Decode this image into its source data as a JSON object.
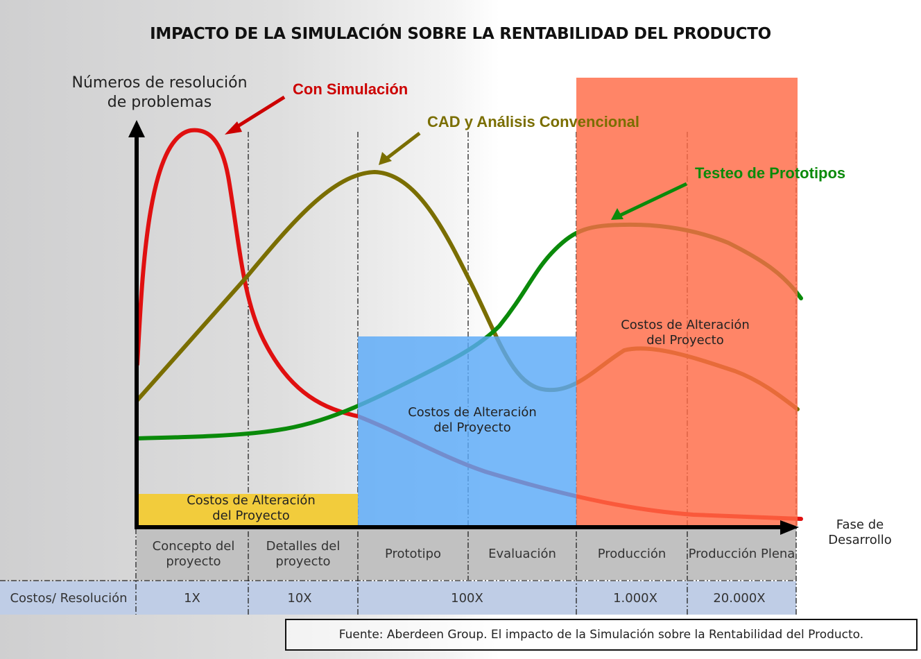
{
  "title": "IMPACTO DE LA SIMULACIÓN SOBRE LA RENTABILIDAD DEL PRODUCTO",
  "y_axis_label": "Números de resolución de problemas",
  "x_axis_label": "Fase de Desarrollo",
  "series": [
    {
      "name": "Con Simulación",
      "color": "#cc0000"
    },
    {
      "name": "CAD y Análisis Convencional",
      "color": "#7a6e00"
    },
    {
      "name": "Testeo de Prototipos",
      "color": "#0a8a0a"
    }
  ],
  "cost_boxes": [
    {
      "label": "Costos de Alteración del Proyecto",
      "color": "#f2cc3c"
    },
    {
      "label": "Costos de Alteración del Proyecto",
      "color": "#5aaaf8"
    },
    {
      "label": "Costos de Alteración del Proyecto",
      "color": "#ff6a45"
    }
  ],
  "phases": [
    "Concepto del proyecto",
    "Detalles del proyecto",
    "Prototipo",
    "Evaluación",
    "Producción",
    "Producción Plena"
  ],
  "cost_row": {
    "label": "Costos/ Resolución",
    "values": [
      "1X",
      "10X",
      "100X",
      "1.000X",
      "20.000X"
    ]
  },
  "source": "Fuente: Aberdeen Group. El impacto de la Simulación sobre la Rentabilidad del Producto."
}
